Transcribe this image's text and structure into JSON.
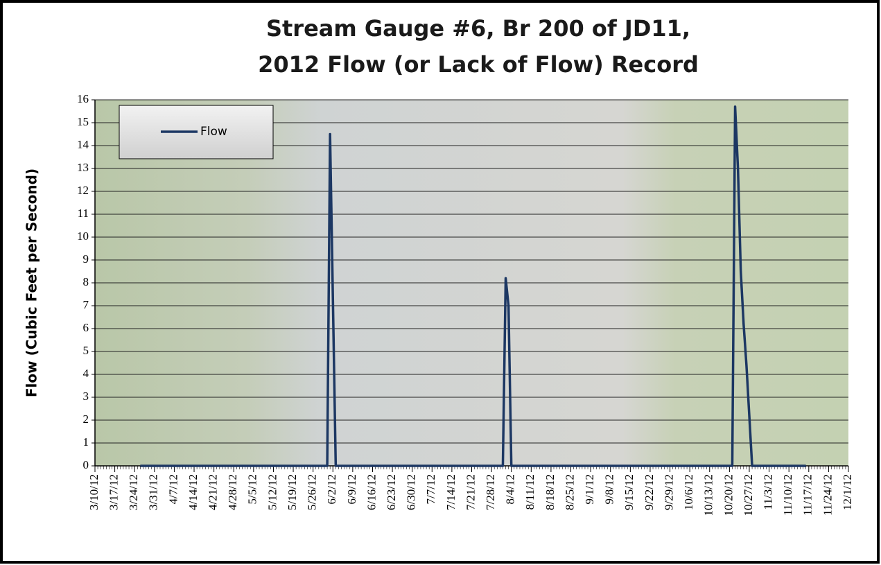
{
  "chart_data": {
    "type": "line",
    "title": "Stream Gauge #6, Br 200 of JD11,",
    "subtitle": "2012 Flow (or Lack of Flow) Record",
    "y_label": "Flow (Cubic Feet per Second)",
    "x": [
      "3/26/12",
      "5/31/12",
      "6/1/12",
      "6/2/12",
      "6/3/12",
      "8/1/12",
      "8/2/12",
      "8/3/12",
      "8/4/12",
      "10/21/12",
      "10/22/12",
      "10/23/12",
      "10/24/12",
      "10/25/12",
      "10/26/12",
      "10/27/12",
      "10/28/12",
      "11/16/12"
    ],
    "series": [
      {
        "name": "Flow",
        "color": "#1c3763",
        "values": [
          0,
          0,
          14.5,
          7.3,
          0,
          0,
          8.2,
          7,
          0,
          0,
          15.7,
          13,
          8.5,
          6.2,
          4.4,
          2.2,
          0,
          0
        ]
      }
    ],
    "xlim": [
      "3/10/12",
      "12/1/12"
    ],
    "xticks": [
      "3/10/12",
      "3/17/12",
      "3/24/12",
      "3/31/12",
      "4/7/12",
      "4/14/12",
      "4/21/12",
      "4/28/12",
      "5/5/12",
      "5/12/12",
      "5/19/12",
      "5/26/12",
      "6/2/12",
      "6/9/12",
      "6/16/12",
      "6/23/12",
      "6/30/12",
      "7/7/12",
      "7/14/12",
      "7/21/12",
      "7/28/12",
      "8/4/12",
      "8/11/12",
      "8/18/12",
      "8/25/12",
      "9/1/12",
      "9/8/12",
      "9/15/12",
      "9/22/12",
      "9/29/12",
      "10/6/12",
      "10/13/12",
      "10/20/12",
      "10/27/12",
      "11/3/12",
      "11/10/12",
      "11/17/12",
      "11/24/12",
      "12/1/12"
    ],
    "ylim": [
      0,
      16
    ],
    "yticks": [
      0,
      1,
      2,
      3,
      4,
      5,
      6,
      7,
      8,
      9,
      10,
      11,
      12,
      13,
      14,
      15,
      16
    ],
    "grid": true,
    "legend": "upper left"
  }
}
